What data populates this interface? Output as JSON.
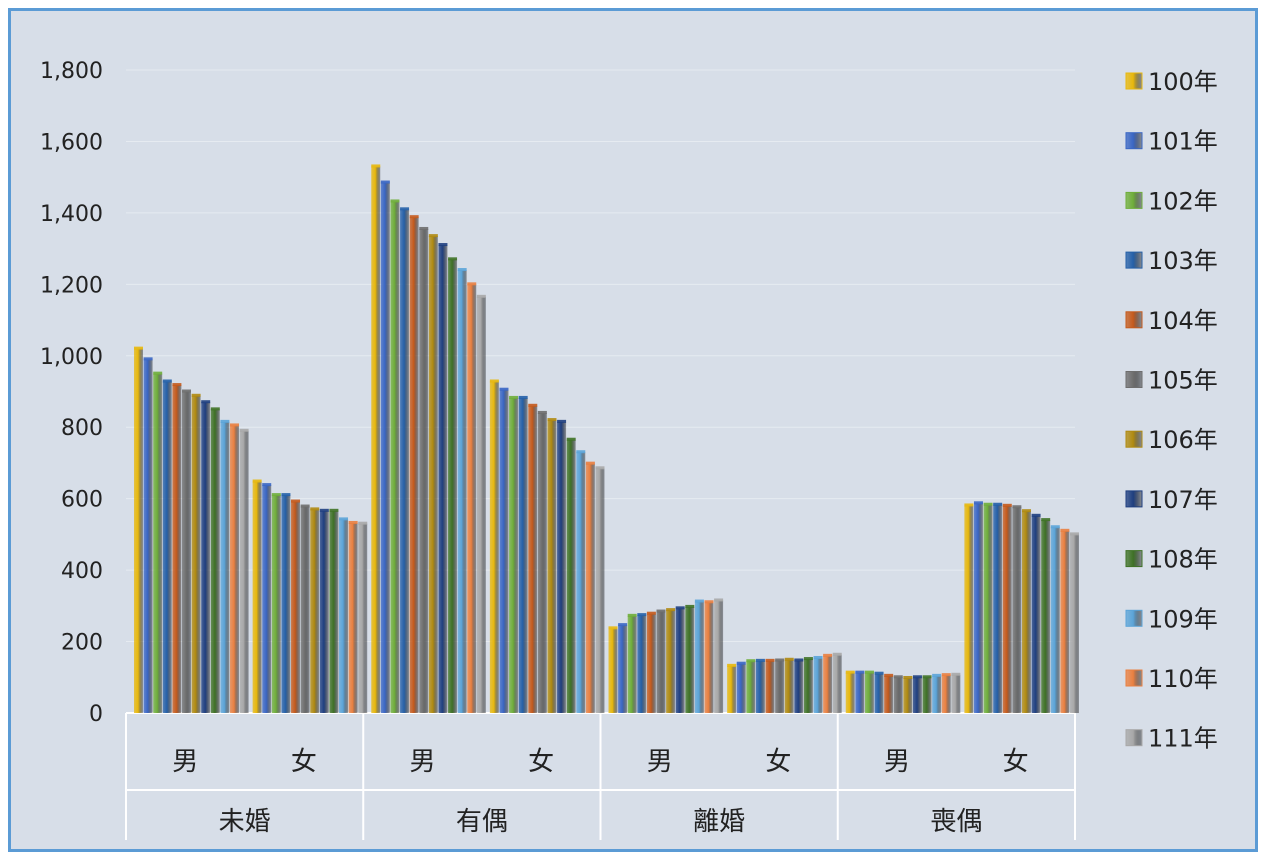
{
  "chart_data": {
    "type": "bar",
    "title": "",
    "xlabel": "",
    "ylabel": "",
    "ylim": [
      0,
      1800
    ],
    "yticks": [
      0,
      200,
      400,
      600,
      800,
      1000,
      1200,
      1400,
      1600,
      1800
    ],
    "ytick_labels": [
      "0",
      "200",
      "400",
      "600",
      "800",
      "1,000",
      "1,200",
      "1,400",
      "1,600",
      "1,800"
    ],
    "grid": "horizontal",
    "legend_position": "right",
    "groups": [
      "未婚",
      "有偶",
      "離婚",
      "喪偶"
    ],
    "subcategories": [
      "男",
      "女"
    ],
    "categories": [
      "未婚 男",
      "未婚 女",
      "有偶 男",
      "有偶 女",
      "離婚 男",
      "離婚 女",
      "喪偶 男",
      "喪偶 女"
    ],
    "series": [
      {
        "name": "100年",
        "color": "#e8b80c",
        "values": [
          1020,
          648,
          1530,
          928,
          237,
          132,
          113,
          581
        ]
      },
      {
        "name": "101年",
        "color": "#3a66c4",
        "values": [
          990,
          638,
          1485,
          905,
          246,
          138,
          113,
          587
        ]
      },
      {
        "name": "102年",
        "color": "#6fae3a",
        "values": [
          950,
          610,
          1432,
          882,
          272,
          145,
          113,
          583
        ]
      },
      {
        "name": "103年",
        "color": "#2560a8",
        "values": [
          928,
          610,
          1410,
          882,
          274,
          146,
          110,
          583
        ]
      },
      {
        "name": "104年",
        "color": "#c55a1c",
        "values": [
          918,
          592,
          1388,
          860,
          278,
          146,
          104,
          580
        ]
      },
      {
        "name": "105年",
        "color": "#6e6e6e",
        "values": [
          900,
          578,
          1355,
          840,
          284,
          147,
          100,
          576
        ]
      },
      {
        "name": "106年",
        "color": "#b08a10",
        "values": [
          888,
          570,
          1335,
          820,
          288,
          149,
          98,
          565
        ]
      },
      {
        "name": "107年",
        "color": "#1f3f80",
        "values": [
          870,
          566,
          1310,
          815,
          293,
          147,
          100,
          552
        ]
      },
      {
        "name": "108年",
        "color": "#3f7226",
        "values": [
          850,
          566,
          1270,
          765,
          297,
          151,
          100,
          540
        ]
      },
      {
        "name": "109年",
        "color": "#5ba4d8",
        "values": [
          815,
          542,
          1240,
          730,
          312,
          154,
          104,
          520
        ]
      },
      {
        "name": "110年",
        "color": "#ea8040",
        "values": [
          805,
          532,
          1200,
          698,
          310,
          160,
          106,
          510
        ]
      },
      {
        "name": "111年",
        "color": "#a8a8a8",
        "values": [
          790,
          530,
          1165,
          685,
          315,
          163,
          107,
          500
        ]
      }
    ]
  }
}
